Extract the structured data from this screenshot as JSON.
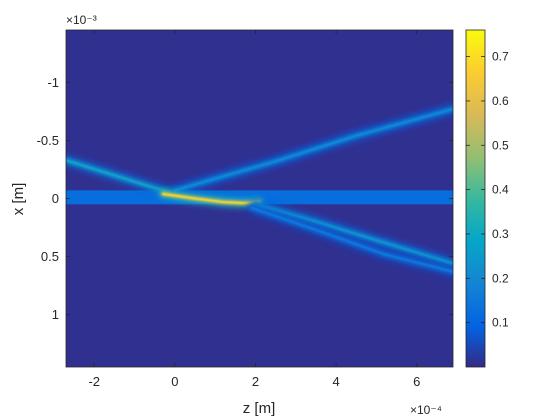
{
  "chart_data": {
    "type": "heatmap",
    "xlabel": "z [m]",
    "ylabel": "x [m]",
    "x_exponent": "×10⁻⁴",
    "y_exponent": "×10⁻³",
    "xlim": [
      -2.7,
      6.9
    ],
    "ylim": [
      -1.45,
      1.45
    ],
    "y_direction": "reverse",
    "x_ticks": [
      {
        "value": -2,
        "label": "-2"
      },
      {
        "value": 0,
        "label": "0"
      },
      {
        "value": 2,
        "label": "2"
      },
      {
        "value": 4,
        "label": "4"
      },
      {
        "value": 6,
        "label": "6"
      }
    ],
    "y_ticks": [
      {
        "value": -1,
        "label": "-1"
      },
      {
        "value": -0.5,
        "label": "-0.5"
      },
      {
        "value": 0,
        "label": "0"
      },
      {
        "value": 0.5,
        "label": "0.5"
      },
      {
        "value": 1,
        "label": "1"
      }
    ],
    "colorbar": {
      "colormap": "parula",
      "range": [
        0,
        0.76
      ],
      "ticks": [
        0.1,
        0.2,
        0.3,
        0.4,
        0.5,
        0.6,
        0.7
      ],
      "tick_labels": [
        "0.1",
        "0.2",
        "0.3",
        "0.4",
        "0.5",
        "0.6",
        "0.7"
      ]
    },
    "background_value": 0.01,
    "layer": {
      "x_min": -0.07,
      "x_max": 0.05,
      "value": 0.12
    },
    "beams": [
      {
        "name": "",
        "z": [
          -2.7,
          -1.5,
          -0.5,
          -0.1
        ],
        "x": [
          -0.33,
          -0.2,
          -0.09,
          -0.05
        ],
        "peak": 0.3
      },
      {
        "name": "",
        "z": [
          0.0,
          1.0,
          2.5,
          4.5,
          6.9
        ],
        "x": [
          -0.07,
          -0.17,
          -0.32,
          -0.54,
          -0.77
        ],
        "peak": 0.22
      },
      {
        "name": "",
        "z": [
          -0.3,
          0.5,
          1.2,
          1.7,
          2.1
        ],
        "x": [
          -0.04,
          0.0,
          0.03,
          0.04,
          0.03
        ],
        "peak": 0.72
      },
      {
        "name": "",
        "z": [
          2.0,
          3.5,
          5.0,
          6.9
        ],
        "x": [
          0.05,
          0.2,
          0.36,
          0.56
        ],
        "peak": 0.26
      },
      {
        "name": "",
        "z": [
          1.9,
          3.5,
          5.2,
          6.9
        ],
        "x": [
          0.08,
          0.27,
          0.48,
          0.63
        ],
        "peak": 0.16
      }
    ]
  }
}
